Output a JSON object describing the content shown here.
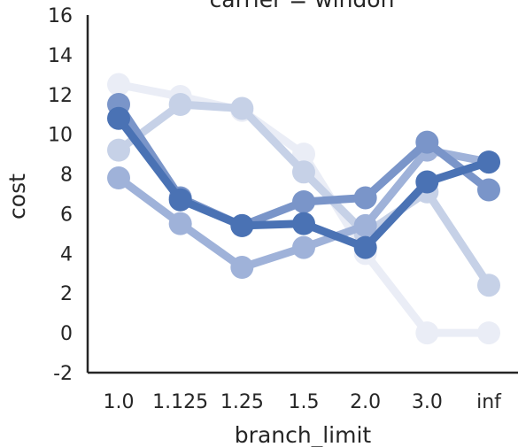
{
  "chart_data": {
    "type": "line",
    "title": "carrier = windon",
    "xlabel": "branch_limit",
    "ylabel": "cost",
    "categories": [
      "1.0",
      "1.125",
      "1.25",
      "1.5",
      "2.0",
      "3.0",
      "inf"
    ],
    "ylim": [
      -2,
      16
    ],
    "yticks": [
      -2,
      0,
      2,
      4,
      6,
      8,
      10,
      12,
      14,
      16
    ],
    "grid": false,
    "legend": "none",
    "series": [
      {
        "color": "#eaedf6",
        "values": [
          12.5,
          11.9,
          11.2,
          9.0,
          4.0,
          0.0,
          0.0
        ]
      },
      {
        "color": "#c6d1e7",
        "values": [
          9.2,
          11.5,
          11.3,
          8.1,
          5.0,
          7.1,
          2.4
        ]
      },
      {
        "color": "#9fb2d9",
        "values": [
          7.8,
          5.5,
          3.3,
          4.3,
          5.4,
          9.2,
          8.6
        ]
      },
      {
        "color": "#7a95c9",
        "values": [
          11.5,
          6.8,
          5.4,
          6.6,
          6.8,
          9.6,
          7.2
        ]
      },
      {
        "color": "#4a72b4",
        "values": [
          10.8,
          6.7,
          5.4,
          5.5,
          4.3,
          7.6,
          8.6
        ]
      }
    ]
  }
}
